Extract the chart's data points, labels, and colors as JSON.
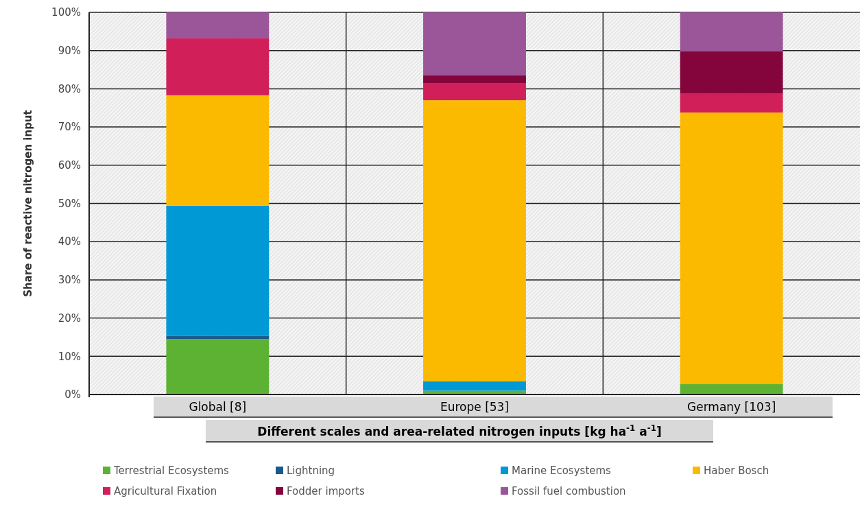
{
  "chart_data": {
    "type": "bar",
    "stacked": true,
    "ylabel": "Share of reactive nitrogen input",
    "xlabel": "Different scales and area-related nitrogen inputs [kg ha$^{-1}$ a$^{-1}$]",
    "categories": [
      "Global [8]",
      "Europe [53]",
      "Germany [103]"
    ],
    "series": [
      {
        "name": "Terrestrial Ecosystems",
        "color": "#5db233",
        "values": [
          14.5,
          1,
          2.8
        ]
      },
      {
        "name": "Lightning",
        "color": "#1a5a8a",
        "values": [
          0.8,
          0,
          0
        ]
      },
      {
        "name": "Marine Ecosystems",
        "color": "#0099d5",
        "values": [
          34.1,
          2.5,
          0
        ]
      },
      {
        "name": "Haber Bosch",
        "color": "#fbba00",
        "values": [
          28.9,
          73.5,
          71
        ]
      },
      {
        "name": "Agricultural Fixation",
        "color": "#d11f5a",
        "values": [
          14.9,
          4.5,
          5
        ]
      },
      {
        "name": "Fodder imports",
        "color": "#83053c",
        "values": [
          0,
          2,
          11
        ]
      },
      {
        "name": "Fossil fuel combustion",
        "color": "#9b5599",
        "values": [
          6.8,
          16.5,
          10.2
        ]
      }
    ],
    "ylim": [
      0,
      100
    ],
    "yticks": [
      {
        "value": 0,
        "label": "0%"
      },
      {
        "value": 10,
        "label": "10%"
      },
      {
        "value": 20,
        "label": "20%"
      },
      {
        "value": 30,
        "label": "30%"
      },
      {
        "value": 40,
        "label": "40%"
      },
      {
        "value": 50,
        "label": "50%"
      },
      {
        "value": 60,
        "label": "60%"
      },
      {
        "value": 70,
        "label": "70%"
      },
      {
        "value": 80,
        "label": "80%"
      },
      {
        "value": 90,
        "label": "90%"
      },
      {
        "value": 100,
        "label": "100%"
      }
    ],
    "grid": true,
    "legend": "bottom"
  }
}
